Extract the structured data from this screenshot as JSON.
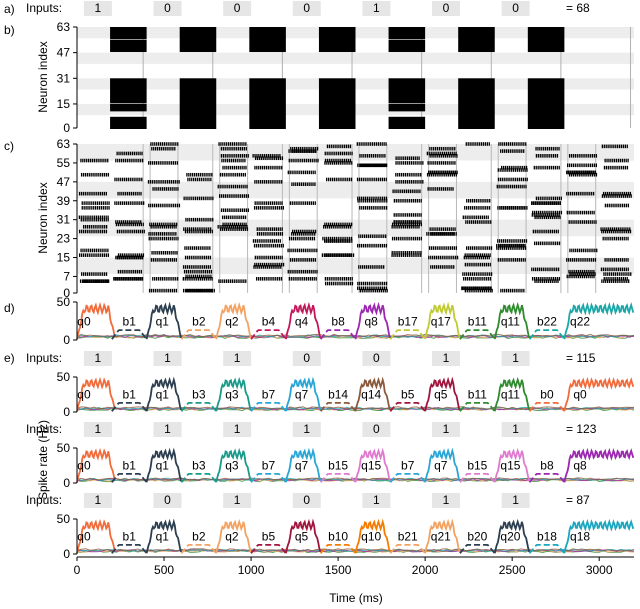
{
  "panel_labels": [
    "a)",
    "b)",
    "c)",
    "d)",
    "e)"
  ],
  "inputs_label": "Inputs:",
  "chart_data": {
    "type": "figure",
    "x_axis": {
      "label": "Time (ms)",
      "range": [
        0,
        3200
      ],
      "ticks": [
        0,
        500,
        1000,
        1500,
        2000,
        2500,
        3000
      ]
    },
    "cycle_ms": 400,
    "input_rows": [
      {
        "panel": "a",
        "bits": [
          "1",
          "0",
          "0",
          "0",
          "1",
          "0",
          "0"
        ],
        "result": "= 68"
      },
      {
        "panel": "e1",
        "bits": [
          "1",
          "1",
          "1",
          "0",
          "0",
          "1",
          "1"
        ],
        "result": "= 115"
      },
      {
        "panel": "e2",
        "bits": [
          "1",
          "1",
          "1",
          "1",
          "0",
          "1",
          "1"
        ],
        "result": "= 123"
      },
      {
        "panel": "e3",
        "bits": [
          "1",
          "0",
          "1",
          "0",
          "1",
          "1",
          "1"
        ],
        "result": "= 87"
      }
    ],
    "raster_b": {
      "type": "heatmap",
      "ylabel": "Neuron index",
      "yticks": [
        0,
        15,
        31,
        47,
        63
      ],
      "blocks_by_bit": {
        "1": [
          [
            0,
            7
          ],
          [
            11,
            15
          ],
          [
            16,
            31
          ],
          [
            48,
            55
          ],
          [
            56,
            63
          ]
        ],
        "0": [
          [
            0,
            31
          ],
          [
            48,
            63
          ]
        ]
      }
    },
    "raster_c": {
      "type": "scatter",
      "ylabel": "Neuron index",
      "yticks": [
        0,
        7,
        15,
        23,
        31,
        39,
        47,
        55,
        63
      ]
    },
    "rate_panels": [
      {
        "panel": "d",
        "ylim": [
          0,
          50
        ],
        "yticks": [
          0,
          50
        ],
        "labels": [
          {
            "t": "q0",
            "c": "#f26b3b"
          },
          {
            "t": "b1",
            "c": "#2c3e50"
          },
          {
            "t": "q1",
            "c": "#2c3e50"
          },
          {
            "t": "b2",
            "c": "#f4a261"
          },
          {
            "t": "q2",
            "c": "#f4a261"
          },
          {
            "t": "b4",
            "c": "#c2185b"
          },
          {
            "t": "q4",
            "c": "#c2185b"
          },
          {
            "t": "b8",
            "c": "#9c27b0"
          },
          {
            "t": "q8",
            "c": "#9c27b0"
          },
          {
            "t": "b17",
            "c": "#c0ca33"
          },
          {
            "t": "q17",
            "c": "#c0ca33"
          },
          {
            "t": "b11",
            "c": "#2e8b2e"
          },
          {
            "t": "q11",
            "c": "#2e8b2e"
          },
          {
            "t": "b22",
            "c": "#1aa7a7"
          },
          {
            "t": "q22",
            "c": "#1aa7a7"
          }
        ]
      },
      {
        "panel": "e1",
        "ylim": [
          0,
          50
        ],
        "yticks": [
          0,
          50
        ],
        "labels": [
          {
            "t": "q0",
            "c": "#f26b3b"
          },
          {
            "t": "b1",
            "c": "#2c3e50"
          },
          {
            "t": "q1",
            "c": "#2c3e50"
          },
          {
            "t": "b3",
            "c": "#1a9a8a"
          },
          {
            "t": "q3",
            "c": "#1a9a8a"
          },
          {
            "t": "b7",
            "c": "#2aa6d6"
          },
          {
            "t": "q7",
            "c": "#2aa6d6"
          },
          {
            "t": "b14",
            "c": "#8b5a3c"
          },
          {
            "t": "q14",
            "c": "#8b5a3c"
          },
          {
            "t": "b5",
            "c": "#a0153e"
          },
          {
            "t": "q5",
            "c": "#a0153e"
          },
          {
            "t": "b11",
            "c": "#2e8b2e"
          },
          {
            "t": "q11",
            "c": "#2e8b2e"
          },
          {
            "t": "b0",
            "c": "#f26b3b"
          },
          {
            "t": "q0",
            "c": "#f26b3b"
          }
        ]
      },
      {
        "panel": "e2",
        "ylim": [
          0,
          50
        ],
        "yticks": [
          0,
          50
        ],
        "labels": [
          {
            "t": "q0",
            "c": "#f26b3b"
          },
          {
            "t": "b1",
            "c": "#2c3e50"
          },
          {
            "t": "q1",
            "c": "#2c3e50"
          },
          {
            "t": "b3",
            "c": "#1a9a8a"
          },
          {
            "t": "q3",
            "c": "#1a9a8a"
          },
          {
            "t": "b7",
            "c": "#2aa6d6"
          },
          {
            "t": "q7",
            "c": "#2aa6d6"
          },
          {
            "t": "b15",
            "c": "#e07ad0"
          },
          {
            "t": "q15",
            "c": "#e07ad0"
          },
          {
            "t": "b7",
            "c": "#2aa6d6"
          },
          {
            "t": "q7",
            "c": "#2aa6d6"
          },
          {
            "t": "b15",
            "c": "#e07ad0"
          },
          {
            "t": "q15",
            "c": "#e07ad0"
          },
          {
            "t": "b8",
            "c": "#9c27b0"
          },
          {
            "t": "q8",
            "c": "#9c27b0"
          }
        ]
      },
      {
        "panel": "e3",
        "ylim": [
          0,
          50
        ],
        "yticks": [
          0,
          50
        ],
        "labels": [
          {
            "t": "q0",
            "c": "#f26b3b"
          },
          {
            "t": "b1",
            "c": "#2c3e50"
          },
          {
            "t": "q1",
            "c": "#2c3e50"
          },
          {
            "t": "b2",
            "c": "#f4a261"
          },
          {
            "t": "q2",
            "c": "#f4a261"
          },
          {
            "t": "b5",
            "c": "#a0153e"
          },
          {
            "t": "q5",
            "c": "#a0153e"
          },
          {
            "t": "b10",
            "c": "#f57c00"
          },
          {
            "t": "q10",
            "c": "#f57c00"
          },
          {
            "t": "b21",
            "c": "#f4a261"
          },
          {
            "t": "q21",
            "c": "#f4a261"
          },
          {
            "t": "b20",
            "c": "#2c3e50"
          },
          {
            "t": "q20",
            "c": "#2c3e50"
          },
          {
            "t": "b18",
            "c": "#1aa7c0"
          },
          {
            "t": "q18",
            "c": "#1aa7c0"
          }
        ]
      }
    ],
    "shared_ylabel": "Spike rate (Hz)"
  }
}
